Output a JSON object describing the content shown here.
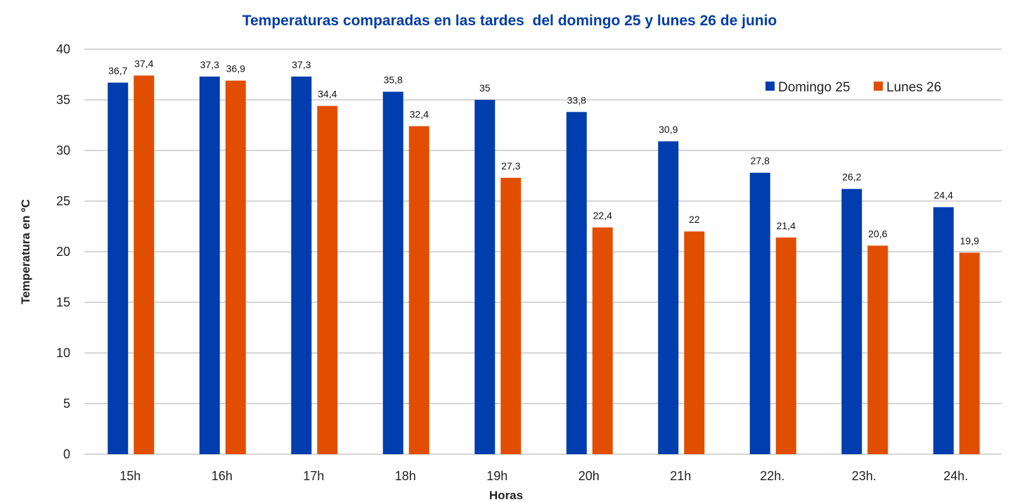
{
  "chart_data": {
    "type": "bar",
    "title": "Temperaturas comparadas en las tardes  del domingo 25 y lunes 26 de junio",
    "xlabel": "Horas",
    "ylabel": "Temperatura en ºC",
    "ylim": [
      0,
      40
    ],
    "yticks": [
      0,
      5,
      10,
      15,
      20,
      25,
      30,
      35,
      40
    ],
    "grid": true,
    "legend_position": "top-right",
    "categories": [
      "15h",
      "16h",
      "17h",
      "18h",
      "19h",
      "20h",
      "21h",
      "22h.",
      "23h.",
      "24h."
    ],
    "series": [
      {
        "name": "Domingo 25",
        "color": "#003DAE",
        "values": [
          36.7,
          37.3,
          37.3,
          35.8,
          35,
          33.8,
          30.9,
          27.8,
          26.2,
          24.4
        ],
        "labels": [
          "36,7",
          "37,3",
          "37,3",
          "35,8",
          "35",
          "33,8",
          "30,9",
          "27,8",
          "26,2",
          "24,4"
        ]
      },
      {
        "name": "Lunes 26",
        "color": "#E24E00",
        "values": [
          37.4,
          36.9,
          34.4,
          32.4,
          27.3,
          22.4,
          22,
          21.4,
          20.6,
          19.9
        ],
        "labels": [
          "37,4",
          "36,9",
          "34,4",
          "32,4",
          "27,3",
          "22,4",
          "22",
          "21,4",
          "20,6",
          "19,9"
        ]
      }
    ]
  },
  "colors": {
    "title": "#003DA5",
    "grid": "#C8C8C8"
  }
}
